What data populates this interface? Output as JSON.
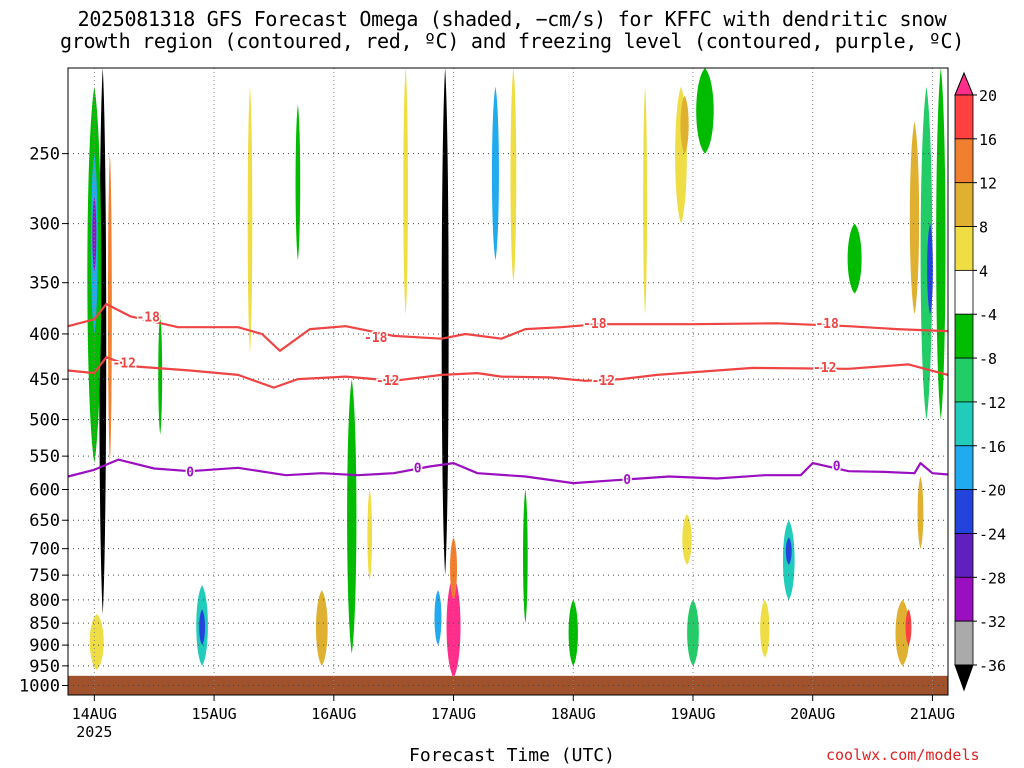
{
  "title_line1": "2025081318 GFS Forecast Omega (shaded, −cm/s) for KFFC with dendritic snow",
  "title_line2": "growth region (contoured, red, ºC) and freezing level (contoured, purple, ºC)",
  "credit": "coolwx.com/models",
  "chart_data": {
    "type": "heatmap",
    "xlabel": "Forecast Time (UTC)",
    "x_ticks": [
      {
        "label": "14AUG",
        "day": 14,
        "sub": "2025"
      },
      {
        "label": "15AUG",
        "day": 15
      },
      {
        "label": "16AUG",
        "day": 16
      },
      {
        "label": "17AUG",
        "day": 17
      },
      {
        "label": "18AUG",
        "day": 18
      },
      {
        "label": "19AUG",
        "day": 19
      },
      {
        "label": "20AUG",
        "day": 20
      },
      {
        "label": "21AUG",
        "day": 21
      }
    ],
    "x_range_day": [
      13.78,
      21.13
    ],
    "y_levels": [
      250,
      300,
      350,
      400,
      450,
      500,
      550,
      600,
      650,
      700,
      750,
      800,
      850,
      900,
      950,
      1000
    ],
    "y_range_hpa": [
      200,
      1025
    ],
    "y_log": true,
    "grid": true,
    "colorbar": {
      "labels": [
        "20",
        "16",
        "12",
        "8",
        "4",
        "-4",
        "-8",
        "-12",
        "-16",
        "-20",
        "-24",
        "-28",
        "-32",
        "-36"
      ],
      "colors": [
        "#ff2e8a",
        "#ff4040",
        "#f08030",
        "#e0b030",
        "#eedd44",
        "#ffffff",
        "#00bb00",
        "#22cc66",
        "#22ccbb",
        "#22aaee",
        "#2244dd",
        "#6020c0",
        "#9a10c0",
        "#aaaaaa",
        "#000000"
      ]
    },
    "contours": [
      {
        "label": "-18",
        "color": "#ee4444",
        "points": [
          [
            13.78,
            392
          ],
          [
            14.0,
            385
          ],
          [
            14.1,
            370
          ],
          [
            14.3,
            382
          ],
          [
            14.7,
            393
          ],
          [
            15.2,
            393
          ],
          [
            15.4,
            400
          ],
          [
            15.55,
            418
          ],
          [
            15.8,
            395
          ],
          [
            16.1,
            392
          ],
          [
            16.5,
            402
          ],
          [
            16.9,
            405
          ],
          [
            17.1,
            400
          ],
          [
            17.4,
            405
          ],
          [
            17.6,
            395
          ],
          [
            17.9,
            393
          ],
          [
            18.2,
            390
          ],
          [
            19.0,
            390
          ],
          [
            19.7,
            389
          ],
          [
            20.3,
            392
          ],
          [
            20.7,
            395
          ],
          [
            21.13,
            397
          ]
        ]
      },
      {
        "label": "-12",
        "color": "#ee4444",
        "points": [
          [
            13.78,
            440
          ],
          [
            14.0,
            443
          ],
          [
            14.1,
            425
          ],
          [
            14.3,
            435
          ],
          [
            14.8,
            440
          ],
          [
            15.2,
            445
          ],
          [
            15.5,
            460
          ],
          [
            15.7,
            450
          ],
          [
            16.1,
            447
          ],
          [
            16.5,
            452
          ],
          [
            16.9,
            445
          ],
          [
            17.2,
            443
          ],
          [
            17.4,
            447
          ],
          [
            17.8,
            448
          ],
          [
            18.1,
            452
          ],
          [
            18.4,
            450
          ],
          [
            18.7,
            445
          ],
          [
            19.5,
            437
          ],
          [
            20.3,
            438
          ],
          [
            20.8,
            433
          ],
          [
            21.13,
            445
          ]
        ]
      },
      {
        "label": "0",
        "color": "#9a10c0",
        "points": [
          [
            13.78,
            580
          ],
          [
            14.0,
            570
          ],
          [
            14.2,
            555
          ],
          [
            14.5,
            568
          ],
          [
            14.8,
            572
          ],
          [
            15.2,
            567
          ],
          [
            15.6,
            578
          ],
          [
            15.9,
            575
          ],
          [
            16.2,
            578
          ],
          [
            16.5,
            575
          ],
          [
            16.8,
            565
          ],
          [
            17.0,
            560
          ],
          [
            17.2,
            575
          ],
          [
            17.6,
            580
          ],
          [
            18.0,
            590
          ],
          [
            18.4,
            585
          ],
          [
            18.8,
            580
          ],
          [
            19.2,
            583
          ],
          [
            19.6,
            578
          ],
          [
            19.9,
            578
          ],
          [
            20.0,
            560
          ],
          [
            20.3,
            572
          ],
          [
            20.6,
            573
          ],
          [
            20.85,
            575
          ],
          [
            20.9,
            560
          ],
          [
            21.0,
            575
          ],
          [
            21.13,
            577
          ]
        ]
      }
    ],
    "contour_labels": [
      {
        "text": "-18",
        "day": 14.45,
        "p": 383,
        "color": "#ee4444"
      },
      {
        "text": "-18",
        "day": 16.35,
        "p": 404,
        "color": "#ee4444"
      },
      {
        "text": "-18",
        "day": 18.18,
        "p": 390,
        "color": "#ee4444"
      },
      {
        "text": "-18",
        "day": 20.12,
        "p": 390,
        "color": "#ee4444"
      },
      {
        "text": "-12",
        "day": 14.25,
        "p": 432,
        "color": "#ee4444"
      },
      {
        "text": "-12",
        "day": 16.45,
        "p": 452,
        "color": "#ee4444"
      },
      {
        "text": "-12",
        "day": 18.25,
        "p": 452,
        "color": "#ee4444"
      },
      {
        "text": "-12",
        "day": 20.1,
        "p": 437,
        "color": "#ee4444"
      },
      {
        "text": "0",
        "day": 14.8,
        "p": 574,
        "color": "#9a10c0"
      },
      {
        "text": "0",
        "day": 16.7,
        "p": 568,
        "color": "#9a10c0"
      },
      {
        "text": "0",
        "day": 18.45,
        "p": 585,
        "color": "#9a10c0"
      },
      {
        "text": "0",
        "day": 20.2,
        "p": 565,
        "color": "#9a10c0"
      }
    ],
    "omega_features": [
      {
        "day": 14.07,
        "p_top": 200,
        "p_bot": 830,
        "w": 0.06,
        "color": "#000000"
      },
      {
        "day": 14.0,
        "p_top": 210,
        "p_bot": 560,
        "w": 0.12,
        "color": "#00bb00"
      },
      {
        "day": 14.0,
        "p_top": 250,
        "p_bot": 400,
        "w": 0.06,
        "color": "#22aaee"
      },
      {
        "day": 14.0,
        "p_top": 280,
        "p_bot": 340,
        "w": 0.03,
        "color": "#9a10c0"
      },
      {
        "day": 14.13,
        "p_top": 250,
        "p_bot": 560,
        "w": 0.03,
        "color": "#f08030"
      },
      {
        "day": 16.93,
        "p_top": 200,
        "p_bot": 750,
        "w": 0.06,
        "color": "#000000"
      },
      {
        "day": 17.0,
        "p_top": 750,
        "p_bot": 980,
        "w": 0.12,
        "color": "#ff2e8a"
      },
      {
        "day": 17.0,
        "p_top": 680,
        "p_bot": 800,
        "w": 0.06,
        "color": "#f08030"
      },
      {
        "day": 16.87,
        "p_top": 780,
        "p_bot": 900,
        "w": 0.06,
        "color": "#22aaee"
      },
      {
        "day": 14.9,
        "p_top": 770,
        "p_bot": 950,
        "w": 0.1,
        "color": "#22ccbb"
      },
      {
        "day": 14.9,
        "p_top": 820,
        "p_bot": 900,
        "w": 0.05,
        "color": "#2244dd"
      },
      {
        "day": 15.9,
        "p_top": 780,
        "p_bot": 950,
        "w": 0.1,
        "color": "#e0b030"
      },
      {
        "day": 16.15,
        "p_top": 450,
        "p_bot": 920,
        "w": 0.08,
        "color": "#00bb00"
      },
      {
        "day": 17.35,
        "p_top": 210,
        "p_bot": 330,
        "w": 0.06,
        "color": "#22aaee"
      },
      {
        "day": 17.5,
        "p_top": 200,
        "p_bot": 350,
        "w": 0.05,
        "color": "#eedd44"
      },
      {
        "day": 18.0,
        "p_top": 800,
        "p_bot": 950,
        "w": 0.08,
        "color": "#00bb00"
      },
      {
        "day": 18.9,
        "p_top": 210,
        "p_bot": 300,
        "w": 0.1,
        "color": "#eedd44"
      },
      {
        "day": 18.93,
        "p_top": 215,
        "p_bot": 250,
        "w": 0.07,
        "color": "#e0b030"
      },
      {
        "day": 19.1,
        "p_top": 200,
        "p_bot": 250,
        "w": 0.15,
        "color": "#00bb00"
      },
      {
        "day": 18.95,
        "p_top": 640,
        "p_bot": 730,
        "w": 0.08,
        "color": "#eedd44"
      },
      {
        "day": 19.0,
        "p_top": 800,
        "p_bot": 950,
        "w": 0.1,
        "color": "#22cc66"
      },
      {
        "day": 19.8,
        "p_top": 650,
        "p_bot": 800,
        "w": 0.1,
        "color": "#22ccbb"
      },
      {
        "day": 19.8,
        "p_top": 680,
        "p_bot": 730,
        "w": 0.05,
        "color": "#2244dd"
      },
      {
        "day": 19.6,
        "p_top": 800,
        "p_bot": 930,
        "w": 0.08,
        "color": "#eedd44"
      },
      {
        "day": 20.35,
        "p_top": 300,
        "p_bot": 360,
        "w": 0.12,
        "color": "#00bb00"
      },
      {
        "day": 20.85,
        "p_top": 230,
        "p_bot": 380,
        "w": 0.08,
        "color": "#e0b030"
      },
      {
        "day": 20.95,
        "p_top": 210,
        "p_bot": 500,
        "w": 0.1,
        "color": "#22cc66"
      },
      {
        "day": 20.98,
        "p_top": 300,
        "p_bot": 380,
        "w": 0.05,
        "color": "#2244dd"
      },
      {
        "day": 21.07,
        "p_top": 200,
        "p_bot": 500,
        "w": 0.08,
        "color": "#00bb00"
      },
      {
        "day": 20.75,
        "p_top": 800,
        "p_bot": 950,
        "w": 0.12,
        "color": "#e0b030"
      },
      {
        "day": 20.8,
        "p_top": 820,
        "p_bot": 900,
        "w": 0.05,
        "color": "#ff4040"
      },
      {
        "day": 20.9,
        "p_top": 580,
        "p_bot": 700,
        "w": 0.05,
        "color": "#e0b030"
      },
      {
        "day": 14.02,
        "p_top": 830,
        "p_bot": 960,
        "w": 0.12,
        "color": "#eedd44"
      },
      {
        "day": 15.3,
        "p_top": 210,
        "p_bot": 420,
        "w": 0.04,
        "color": "#eedd44"
      },
      {
        "day": 15.7,
        "p_top": 220,
        "p_bot": 330,
        "w": 0.04,
        "color": "#00bb00"
      },
      {
        "day": 16.6,
        "p_top": 200,
        "p_bot": 380,
        "w": 0.04,
        "color": "#eedd44"
      },
      {
        "day": 17.6,
        "p_top": 600,
        "p_bot": 850,
        "w": 0.04,
        "color": "#00bb00"
      },
      {
        "day": 18.6,
        "p_top": 210,
        "p_bot": 380,
        "w": 0.03,
        "color": "#eedd44"
      },
      {
        "day": 14.55,
        "p_top": 380,
        "p_bot": 520,
        "w": 0.03,
        "color": "#00bb00"
      },
      {
        "day": 16.3,
        "p_top": 600,
        "p_bot": 760,
        "w": 0.04,
        "color": "#eedd44"
      }
    ],
    "surface_color": "#a0522d"
  }
}
